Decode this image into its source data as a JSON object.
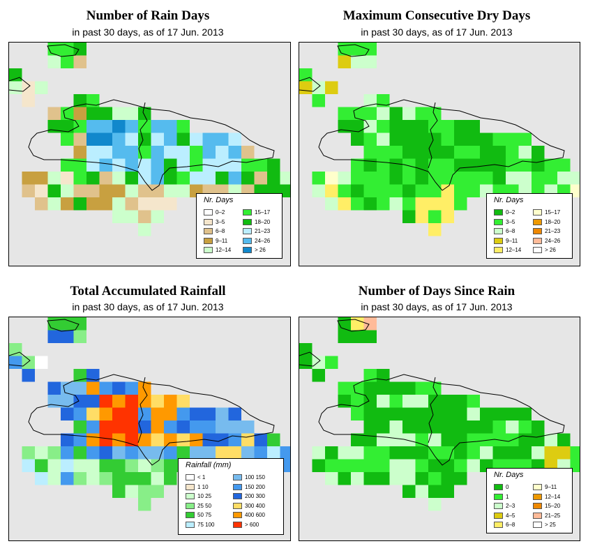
{
  "panels": [
    {
      "title": "Number of Rain Days",
      "subtitle": "in past 30 days, as of  17 Jun. 2013",
      "legend_title": "Nr. Days",
      "legend": [
        {
          "label": "0–2",
          "color": "#ffffff"
        },
        {
          "label": "3–5",
          "color": "#f5e6cc"
        },
        {
          "label": "6–8",
          "color": "#e0c28c"
        },
        {
          "label": "9–11",
          "color": "#c8a040"
        },
        {
          "label": "12–14",
          "color": "#ccffcc"
        },
        {
          "label": "15–17",
          "color": "#33ee33"
        },
        {
          "label": "18–20",
          "color": "#11bb11"
        },
        {
          "label": "21–23",
          "color": "#bbeeff"
        },
        {
          "label": "24–26",
          "color": "#55bbee"
        },
        {
          "label": "> 26",
          "color": "#1188cc"
        }
      ]
    },
    {
      "title": "Maximum Consecutive Dry Days",
      "subtitle": "in past 30 days, as of  17 Jun. 2013",
      "legend_title": "Nr. Days",
      "legend": [
        {
          "label": "0–2",
          "color": "#11bb11"
        },
        {
          "label": "3–5",
          "color": "#33ee33"
        },
        {
          "label": "6–8",
          "color": "#ccffcc"
        },
        {
          "label": "9–11",
          "color": "#ddcc11"
        },
        {
          "label": "12–14",
          "color": "#ffee66"
        },
        {
          "label": "15–17",
          "color": "#ffffcc"
        },
        {
          "label": "18–20",
          "color": "#ee9900"
        },
        {
          "label": "21–23",
          "color": "#ee8800"
        },
        {
          "label": "24–26",
          "color": "#ffbb99"
        },
        {
          "label": "> 26",
          "color": "#ffffff"
        }
      ]
    },
    {
      "title": "Total Accumulated Rainfall",
      "subtitle": "in past 30 days, as of  17 Jun. 2013",
      "legend_title": "Rainfall (mm)",
      "legend": [
        {
          "label": "< 1",
          "color": "#ffffff"
        },
        {
          "label": "1    10",
          "color": "#f5e6cc"
        },
        {
          "label": "10    25",
          "color": "#ccffcc"
        },
        {
          "label": "25    50",
          "color": "#88ee88"
        },
        {
          "label": "50    75",
          "color": "#33cc33"
        },
        {
          "label": "75   100",
          "color": "#bbeeff"
        },
        {
          "label": "100   150",
          "color": "#77bbee"
        },
        {
          "label": "150  200",
          "color": "#4499ee"
        },
        {
          "label": "200  300",
          "color": "#2266dd"
        },
        {
          "label": "300  400",
          "color": "#ffdd66"
        },
        {
          "label": "400  600",
          "color": "#ff9900"
        },
        {
          "label": "> 600",
          "color": "#ff3300"
        }
      ]
    },
    {
      "title": "Number of Days Since Rain",
      "subtitle": "in past 30 days, as of  17 Jun. 2013",
      "legend_title": "Nr. Days",
      "legend": [
        {
          "label": "0",
          "color": "#11bb11"
        },
        {
          "label": "1",
          "color": "#33ee33"
        },
        {
          "label": "2–3",
          "color": "#ccffcc"
        },
        {
          "label": "4–5",
          "color": "#ddcc11"
        },
        {
          "label": "6–8",
          "color": "#ffee66"
        },
        {
          "label": "9–11",
          "color": "#ffffcc"
        },
        {
          "label": "12–14",
          "color": "#ee9900"
        },
        {
          "label": "15–20",
          "color": "#ee8800"
        },
        {
          "label": "21–25",
          "color": "#ffbb99"
        },
        {
          "label": "> 25",
          "color": "#ffffff"
        }
      ]
    }
  ]
}
